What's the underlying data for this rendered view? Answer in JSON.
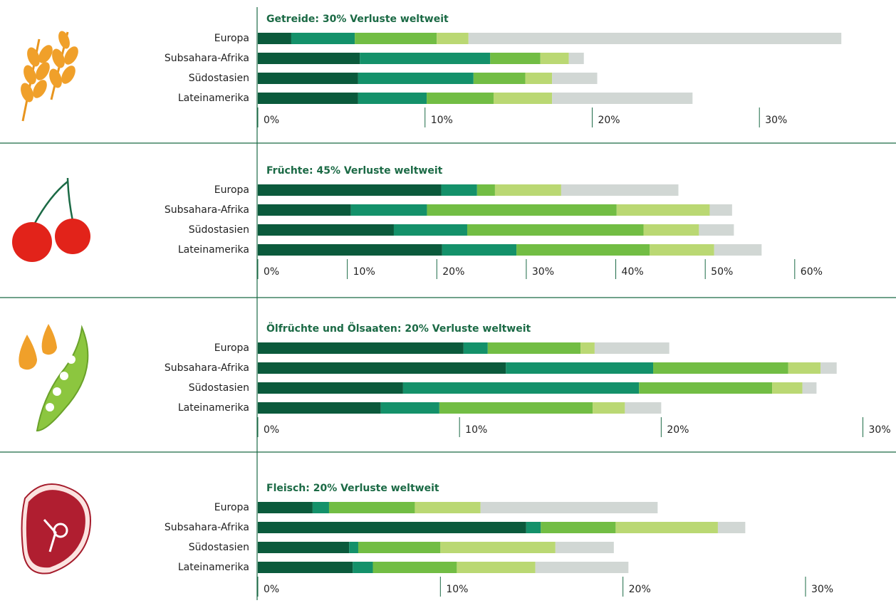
{
  "chart_data": [
    {
      "type": "stacked-barh",
      "title": "Getreide: 30% Verluste weltweit",
      "categories": [
        "Europa",
        "Subsahara-Afrika",
        "Südostasien",
        "Lateinamerika"
      ],
      "series": [
        {
          "color": "#0b5a3c",
          "values": [
            2.0,
            6.1,
            6.0,
            6.0
          ]
        },
        {
          "color": "#14916a",
          "values": [
            3.8,
            7.8,
            6.9,
            4.1
          ]
        },
        {
          "color": "#72bd44",
          "values": [
            4.9,
            3.0,
            3.1,
            4.0
          ]
        },
        {
          "color": "#bad873",
          "values": [
            1.9,
            1.7,
            1.6,
            3.5
          ]
        },
        {
          "color": "#d1d7d4",
          "values": [
            22.3,
            0.9,
            2.7,
            8.4
          ]
        }
      ],
      "xlim": [
        0,
        38
      ],
      "xticks": [
        {
          "value": 0,
          "label": "0%"
        },
        {
          "value": 10,
          "label": "10%"
        },
        {
          "value": 20,
          "label": "20%"
        },
        {
          "value": 30,
          "label": "30%"
        }
      ]
    },
    {
      "type": "stacked-barh",
      "title": "Früchte: 45% Verluste weltweit",
      "categories": [
        "Europa",
        "Subsahara-Afrika",
        "Südostasien",
        "Lateinamerika"
      ],
      "series": [
        {
          "color": "#0b5a3c",
          "values": [
            20.5,
            10.4,
            15.2,
            20.6
          ]
        },
        {
          "color": "#14916a",
          "values": [
            4.0,
            8.5,
            8.2,
            8.3
          ]
        },
        {
          "color": "#72bd44",
          "values": [
            2.0,
            21.2,
            19.7,
            14.9
          ]
        },
        {
          "color": "#bad873",
          "values": [
            7.4,
            10.4,
            6.2,
            7.2
          ]
        },
        {
          "color": "#d1d7d4",
          "values": [
            13.1,
            2.5,
            3.9,
            5.3
          ]
        }
      ],
      "xlim": [
        0,
        71
      ],
      "xticks": [
        {
          "value": 0,
          "label": "0%"
        },
        {
          "value": 10,
          "label": "10%"
        },
        {
          "value": 20,
          "label": "20%"
        },
        {
          "value": 30,
          "label": "30%"
        },
        {
          "value": 40,
          "label": "40%"
        },
        {
          "value": 50,
          "label": "50%"
        },
        {
          "value": 60,
          "label": "60%"
        }
      ]
    },
    {
      "type": "stacked-barh",
      "title": "Ölfrüchte und Ölsaaten: 20% Verluste weltweit",
      "categories": [
        "Europa",
        "Subsahara-Afrika",
        "Südostasien",
        "Lateinamerika"
      ],
      "series": [
        {
          "color": "#0b5a3c",
          "values": [
            10.2,
            12.3,
            7.2,
            6.1
          ]
        },
        {
          "color": "#14916a",
          "values": [
            1.2,
            7.3,
            11.7,
            2.9
          ]
        },
        {
          "color": "#72bd44",
          "values": [
            4.6,
            6.7,
            6.6,
            7.6
          ]
        },
        {
          "color": "#bad873",
          "values": [
            0.7,
            1.6,
            1.5,
            1.6
          ]
        },
        {
          "color": "#d1d7d4",
          "values": [
            3.7,
            0.8,
            0.7,
            1.8
          ]
        }
      ],
      "xlim": [
        0,
        31.5
      ],
      "xticks": [
        {
          "value": 0,
          "label": "0%"
        },
        {
          "value": 10,
          "label": "10%"
        },
        {
          "value": 20,
          "label": "20%"
        },
        {
          "value": 30,
          "label": "30%"
        }
      ]
    },
    {
      "type": "stacked-barh",
      "title": "Fleisch: 20% Verluste weltweit",
      "categories": [
        "Europa",
        "Subsahara-Afrika",
        "Südostasien",
        "Lateinamerika"
      ],
      "series": [
        {
          "color": "#0b5a3c",
          "values": [
            3.0,
            14.7,
            5.0,
            5.2
          ]
        },
        {
          "color": "#14916a",
          "values": [
            0.9,
            0.8,
            0.5,
            1.1
          ]
        },
        {
          "color": "#72bd44",
          "values": [
            4.7,
            4.1,
            4.5,
            4.6
          ]
        },
        {
          "color": "#bad873",
          "values": [
            3.6,
            5.6,
            6.3,
            4.3
          ]
        },
        {
          "color": "#d1d7d4",
          "values": [
            9.7,
            1.5,
            3.2,
            5.1
          ]
        }
      ],
      "xlim": [
        0,
        34.8
      ],
      "xticks": [
        {
          "value": 0,
          "label": "0%"
        },
        {
          "value": 10,
          "label": "10%"
        },
        {
          "value": 20,
          "label": "20%"
        },
        {
          "value": 30,
          "label": "30%"
        }
      ]
    }
  ]
}
